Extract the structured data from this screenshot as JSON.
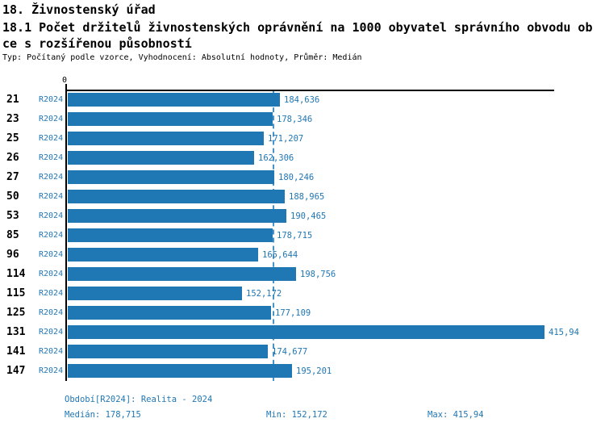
{
  "header": {
    "title_line1": "18. Živnostenský úřad",
    "title_line2": "18.1 Počet držitelů živnostenských oprávnění na 1000 obyvatel správního obvodu ob",
    "title_line3": "ce s rozšířenou působností",
    "meta": "Typ: Počítaný podle vzorce, Vyhodnocení: Absolutní hodnoty, Průměr: Medián"
  },
  "chart_data": {
    "type": "bar",
    "orientation": "horizontal",
    "title": "18.1 Počet držitelů živnostenských oprávnění na 1000 obyvatel správního obvodu obce s rozšířenou působností",
    "axis_zero_label": "0",
    "xlim": [
      0,
      424
    ],
    "grid": false,
    "legend_position": "bottom",
    "period_label": "R2024",
    "categories": [
      "21",
      "23",
      "25",
      "26",
      "27",
      "50",
      "53",
      "85",
      "96",
      "114",
      "115",
      "125",
      "131",
      "141",
      "147"
    ],
    "series": [
      {
        "name": "R2024 (Realita - 2024)",
        "values": [
          184.636,
          178.346,
          171.207,
          162.306,
          180.246,
          188.965,
          190.465,
          178.715,
          165.644,
          198.756,
          152.172,
          177.109,
          415.94,
          174.677,
          195.201
        ],
        "value_labels": [
          "184,636",
          "178,346",
          "171,207",
          "162,306",
          "180,246",
          "188,965",
          "190,465",
          "178,715",
          "165,644",
          "198,756",
          "152,172",
          "177,109",
          "415,94",
          "174,677",
          "195,201"
        ]
      }
    ],
    "median": 178.715,
    "min": 152.172,
    "max": 415.94
  },
  "colors": {
    "bar": "#1f77b4",
    "text_blue": "#2077b4",
    "median_line": "#4a93c8",
    "axis": "#000000"
  },
  "footer": {
    "period_info": "Období[R2024]: Realita - 2024",
    "median": "Medián: 178,715",
    "min": "Min: 152,172",
    "max": "Max: 415,94"
  }
}
